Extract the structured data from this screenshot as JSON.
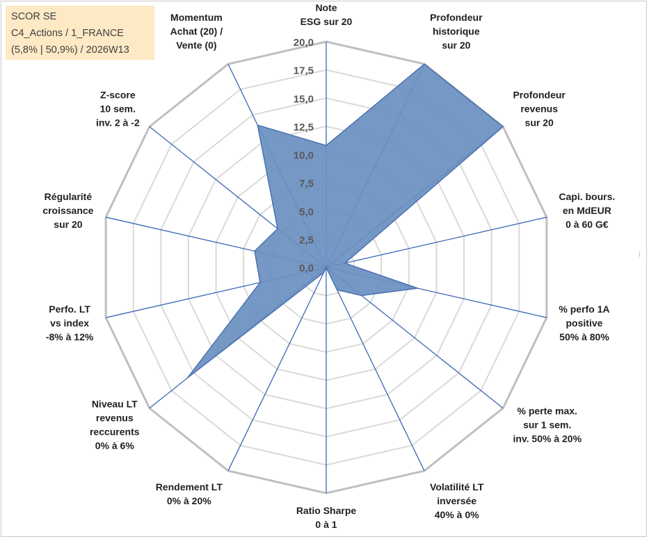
{
  "info_box": {
    "line1": "SCOR SE",
    "line2": "C4_Actions / 1_FRANCE",
    "line3": "(5,8% | 50,9%) / 2026W13"
  },
  "colors": {
    "fill": "#6a8fc0",
    "stroke": "#4a72b0",
    "spoke": "#3b66b5",
    "grid_outer": "#bfbfbf",
    "grid_inner": "#d9d9d9",
    "info_bg": "#fde9c4"
  },
  "chart_data": {
    "type": "radar",
    "title": "",
    "r_range": [
      0,
      20
    ],
    "r_ticks": [
      "0,0",
      "2,5",
      "5,0",
      "7,5",
      "10,0",
      "12,5",
      "15,0",
      "17,5",
      "20,0"
    ],
    "grid": true,
    "axes": [
      {
        "lines": [
          "Note",
          "ESG sur 20"
        ],
        "value": 10.8
      },
      {
        "lines": [
          "Profondeur",
          "historique",
          "sur 20"
        ],
        "value": 20.0
      },
      {
        "lines": [
          "Profondeur",
          "revenus",
          "sur 20"
        ],
        "value": 20.0
      },
      {
        "lines": [
          "Capi. bours.",
          "en MdEUR",
          "0 à 60 G€"
        ],
        "value": 1.7
      },
      {
        "lines": [
          "% perfo 1A",
          "positive",
          "50% à 80%"
        ],
        "value": 8.3
      },
      {
        "lines": [
          "% perte max.",
          "sur 1 sem.",
          "inv. 50% à 20%"
        ],
        "value": 4.0
      },
      {
        "lines": [
          "Volatilité LT",
          "inversée",
          "40% à 0%"
        ],
        "value": 2.2
      },
      {
        "lines": [
          "Ratio Sharpe",
          "0 à 1"
        ],
        "value": 0.0
      },
      {
        "lines": [
          "Rendement LT",
          "0% à 20%"
        ],
        "value": 0.5
      },
      {
        "lines": [
          "Niveau LT",
          "revenus",
          "reccurents",
          "0% à 6%"
        ],
        "value": 15.7
      },
      {
        "lines": [
          "Perfo. LT",
          "vs index",
          "-8% à 12%"
        ],
        "value": 6.0
      },
      {
        "lines": [
          "Régularité",
          "croissance",
          "sur 20"
        ],
        "value": 6.5
      },
      {
        "lines": [
          "Z-score",
          "10 sem.",
          "inv. 2 à -2"
        ],
        "value": 5.5
      },
      {
        "lines": [
          "Momentum",
          "Achat (20) /",
          "Vente (0)"
        ],
        "value": 14.0
      }
    ]
  }
}
